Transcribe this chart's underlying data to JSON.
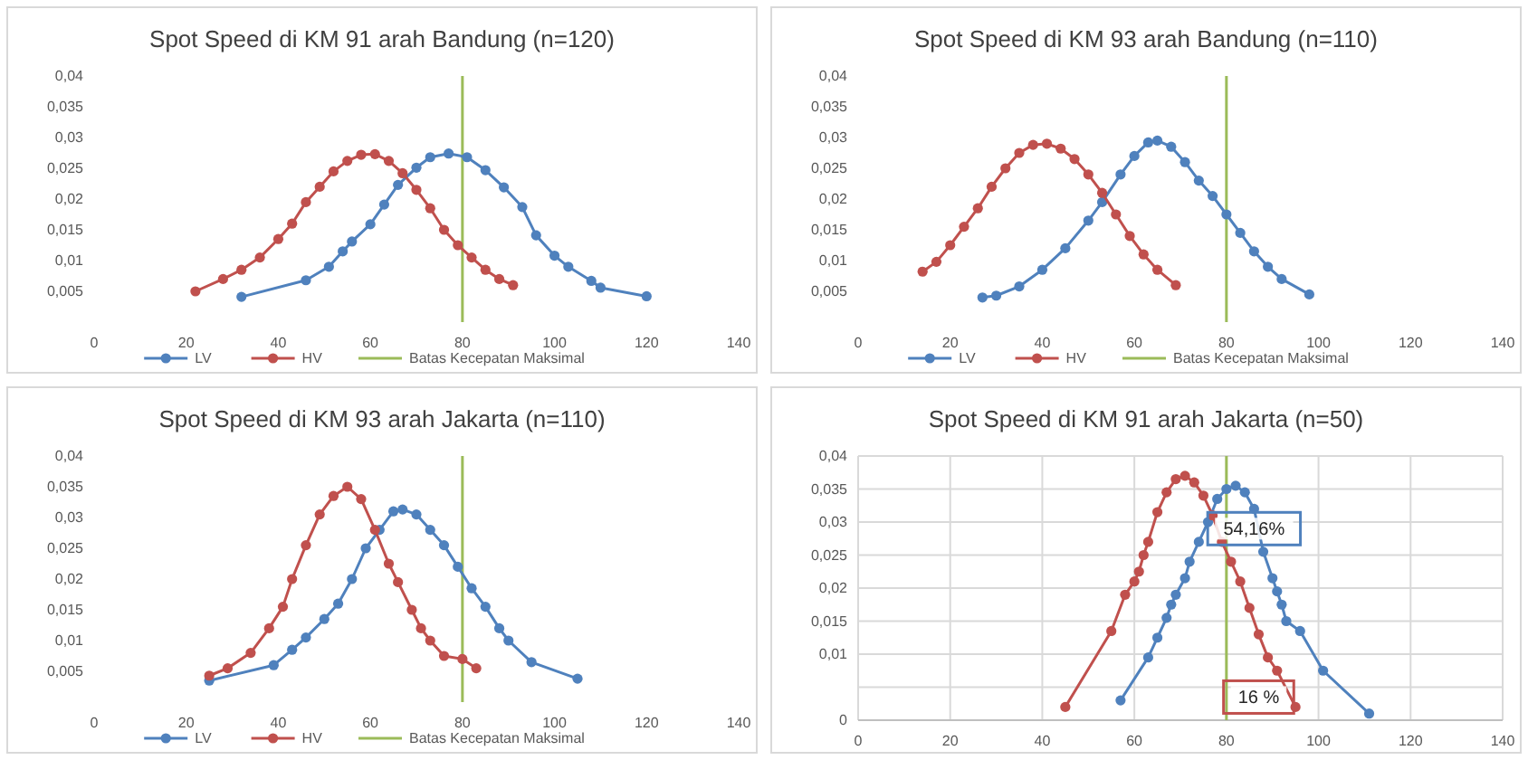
{
  "chart_data": [
    {
      "type": "line",
      "title": "Spot Speed di KM 91 arah Bandung (n=120)",
      "xlim": [
        0,
        140
      ],
      "xticks": [
        0,
        20,
        40,
        60,
        80,
        100,
        120,
        140
      ],
      "ylim": [
        0,
        0.04
      ],
      "yticks": [
        {
          "value": 0.005,
          "label": "0,005"
        },
        {
          "value": 0.01,
          "label": "0,01"
        },
        {
          "value": 0.015,
          "label": "0,015"
        },
        {
          "value": 0.02,
          "label": "0,02"
        },
        {
          "value": 0.025,
          "label": "0,025"
        },
        {
          "value": 0.03,
          "label": "0,03"
        },
        {
          "value": 0.035,
          "label": "0,035"
        },
        {
          "value": 0.04,
          "label": "0,04"
        }
      ],
      "grid": false,
      "legend": "bottom",
      "marker": "circle",
      "line_style": "solid",
      "series": [
        {
          "name": "LV",
          "color": "#4f81bd",
          "x": [
            32,
            46,
            51,
            54,
            56,
            60,
            63,
            66,
            70,
            73,
            77,
            81,
            85,
            89,
            93,
            96,
            100,
            103,
            108,
            110,
            120
          ],
          "values": [
            0.0041,
            0.0068,
            0.009,
            0.0115,
            0.0131,
            0.0159,
            0.0191,
            0.0223,
            0.0251,
            0.0268,
            0.0274,
            0.0268,
            0.0247,
            0.0219,
            0.0187,
            0.0141,
            0.0108,
            0.009,
            0.0067,
            0.0056,
            0.0042
          ]
        },
        {
          "name": "HV",
          "color": "#c0504d",
          "x": [
            22,
            28,
            32,
            36,
            40,
            43,
            46,
            49,
            52,
            55,
            58,
            61,
            64,
            67,
            70,
            73,
            76,
            79,
            82,
            85,
            88,
            91
          ],
          "values": [
            0.005,
            0.007,
            0.0085,
            0.0105,
            0.0135,
            0.016,
            0.0195,
            0.022,
            0.0245,
            0.0262,
            0.0272,
            0.0273,
            0.0262,
            0.0242,
            0.0215,
            0.0185,
            0.015,
            0.0125,
            0.0105,
            0.0085,
            0.007,
            0.006
          ]
        }
      ],
      "ref_lines": [
        {
          "axis": "x",
          "value": 80,
          "label": "Batas Kecepatan Maksimal",
          "color": "#9bbb59"
        }
      ]
    },
    {
      "type": "line",
      "title": "Spot Speed di KM 93 arah Bandung (n=110)",
      "xlim": [
        0,
        140
      ],
      "xticks": [
        0,
        20,
        40,
        60,
        80,
        100,
        120,
        140
      ],
      "ylim": [
        0,
        0.04
      ],
      "yticks": [
        {
          "value": 0.005,
          "label": "0,005"
        },
        {
          "value": 0.01,
          "label": "0,01"
        },
        {
          "value": 0.015,
          "label": "0,015"
        },
        {
          "value": 0.02,
          "label": "0,02"
        },
        {
          "value": 0.025,
          "label": "0,025"
        },
        {
          "value": 0.03,
          "label": "0,03"
        },
        {
          "value": 0.035,
          "label": "0,035"
        },
        {
          "value": 0.04,
          "label": "0,04"
        }
      ],
      "grid": false,
      "legend": "bottom",
      "marker": "circle",
      "line_style": "solid",
      "series": [
        {
          "name": "LV",
          "color": "#4f81bd",
          "x": [
            27,
            30,
            35,
            40,
            45,
            50,
            53,
            57,
            60,
            63,
            65,
            68,
            71,
            74,
            77,
            80,
            83,
            86,
            89,
            92,
            98
          ],
          "values": [
            0.004,
            0.0043,
            0.0058,
            0.0085,
            0.012,
            0.0165,
            0.0195,
            0.024,
            0.027,
            0.0292,
            0.0295,
            0.0285,
            0.026,
            0.023,
            0.0205,
            0.0175,
            0.0145,
            0.0115,
            0.009,
            0.007,
            0.0045
          ]
        },
        {
          "name": "HV",
          "color": "#c0504d",
          "x": [
            14,
            17,
            20,
            23,
            26,
            29,
            32,
            35,
            38,
            41,
            44,
            47,
            50,
            53,
            56,
            59,
            62,
            65,
            69
          ],
          "values": [
            0.0082,
            0.0098,
            0.0125,
            0.0155,
            0.0185,
            0.022,
            0.025,
            0.0275,
            0.0288,
            0.029,
            0.0282,
            0.0265,
            0.024,
            0.021,
            0.0175,
            0.014,
            0.011,
            0.0085,
            0.006
          ]
        }
      ],
      "ref_lines": [
        {
          "axis": "x",
          "value": 80,
          "label": "Batas Kecepatan Maksimal",
          "color": "#9bbb59"
        }
      ]
    },
    {
      "type": "line",
      "title": "Spot Speed di KM 93 arah Jakarta (n=110)",
      "xlim": [
        0,
        140
      ],
      "xticks": [
        0,
        20,
        40,
        60,
        80,
        100,
        120,
        140
      ],
      "ylim": [
        0,
        0.04
      ],
      "yticks": [
        {
          "value": 0.005,
          "label": "0,005"
        },
        {
          "value": 0.01,
          "label": "0,01"
        },
        {
          "value": 0.015,
          "label": "0,015"
        },
        {
          "value": 0.02,
          "label": "0,02"
        },
        {
          "value": 0.025,
          "label": "0,025"
        },
        {
          "value": 0.03,
          "label": "0,03"
        },
        {
          "value": 0.035,
          "label": "0,035"
        },
        {
          "value": 0.04,
          "label": "0,04"
        }
      ],
      "grid": false,
      "legend": "bottom",
      "marker": "circle",
      "line_style": "solid",
      "series": [
        {
          "name": "LV",
          "color": "#4f81bd",
          "x": [
            25,
            39,
            43,
            46,
            50,
            53,
            56,
            59,
            62,
            65,
            67,
            70,
            73,
            76,
            79,
            82,
            85,
            88,
            90,
            95,
            105
          ],
          "values": [
            0.0035,
            0.006,
            0.0085,
            0.0105,
            0.0135,
            0.016,
            0.02,
            0.025,
            0.028,
            0.031,
            0.0313,
            0.0305,
            0.028,
            0.0255,
            0.022,
            0.0185,
            0.0155,
            0.012,
            0.01,
            0.0065,
            0.0038
          ]
        },
        {
          "name": "HV",
          "color": "#c0504d",
          "x": [
            25,
            29,
            34,
            38,
            41,
            43,
            46,
            49,
            52,
            55,
            58,
            61,
            64,
            66,
            69,
            71,
            73,
            76,
            80,
            83
          ],
          "values": [
            0.0043,
            0.0055,
            0.008,
            0.012,
            0.0155,
            0.02,
            0.0255,
            0.0305,
            0.0335,
            0.035,
            0.033,
            0.028,
            0.0225,
            0.0195,
            0.015,
            0.012,
            0.01,
            0.0075,
            0.007,
            0.0055
          ]
        }
      ],
      "ref_lines": [
        {
          "axis": "x",
          "value": 80,
          "label": "Batas Kecepatan Maksimal",
          "color": "#9bbb59"
        }
      ]
    },
    {
      "type": "line",
      "title": "Spot Speed di KM 91 arah Jakarta (n=50)",
      "xlim": [
        0,
        140
      ],
      "xticks": [
        0,
        20,
        40,
        60,
        80,
        100,
        120,
        140
      ],
      "ylim": [
        0,
        0.04
      ],
      "yticks": [
        0,
        {
          "value": 0.005,
          "label": null
        },
        {
          "value": 0.01,
          "label": "0,01"
        },
        {
          "value": 0.015,
          "label": "0,015"
        },
        {
          "value": 0.02,
          "label": "0,02"
        },
        {
          "value": 0.025,
          "label": "0,025"
        },
        {
          "value": 0.03,
          "label": "0,03"
        },
        {
          "value": 0.035,
          "label": "0,035"
        },
        {
          "value": 0.04,
          "label": "0,04"
        }
      ],
      "grid": true,
      "marker": "circle",
      "line_style": "solid",
      "series": [
        {
          "color": "#4f81bd",
          "x": [
            57,
            63,
            65,
            67,
            68,
            69,
            71,
            72,
            74,
            76,
            78,
            80,
            82,
            84,
            86,
            88,
            90,
            91,
            92,
            93,
            96,
            101,
            111
          ],
          "values": [
            0.003,
            0.0095,
            0.0125,
            0.0155,
            0.0175,
            0.019,
            0.0215,
            0.024,
            0.027,
            0.03,
            0.0335,
            0.035,
            0.0355,
            0.0345,
            0.032,
            0.0255,
            0.0215,
            0.0195,
            0.0175,
            0.015,
            0.0135,
            0.0075,
            0.001
          ]
        },
        {
          "color": "#c0504d",
          "x": [
            45,
            55,
            58,
            60,
            61,
            62,
            63,
            65,
            67,
            69,
            71,
            73,
            75,
            77,
            79,
            81,
            83,
            85,
            87,
            89,
            91,
            95
          ],
          "values": [
            0.002,
            0.0135,
            0.019,
            0.021,
            0.0225,
            0.025,
            0.027,
            0.0315,
            0.0345,
            0.0365,
            0.037,
            0.036,
            0.034,
            0.031,
            0.027,
            0.024,
            0.021,
            0.017,
            0.013,
            0.0095,
            0.0075,
            0.002
          ]
        }
      ],
      "ref_lines": [
        {
          "axis": "x",
          "value": 80,
          "color": "#9bbb59"
        }
      ],
      "annotations": [
        {
          "text": "54,16%",
          "x": 86,
          "y": 0.029
        },
        {
          "text": "16 %",
          "x": 87,
          "y": 0.0035
        }
      ]
    }
  ]
}
